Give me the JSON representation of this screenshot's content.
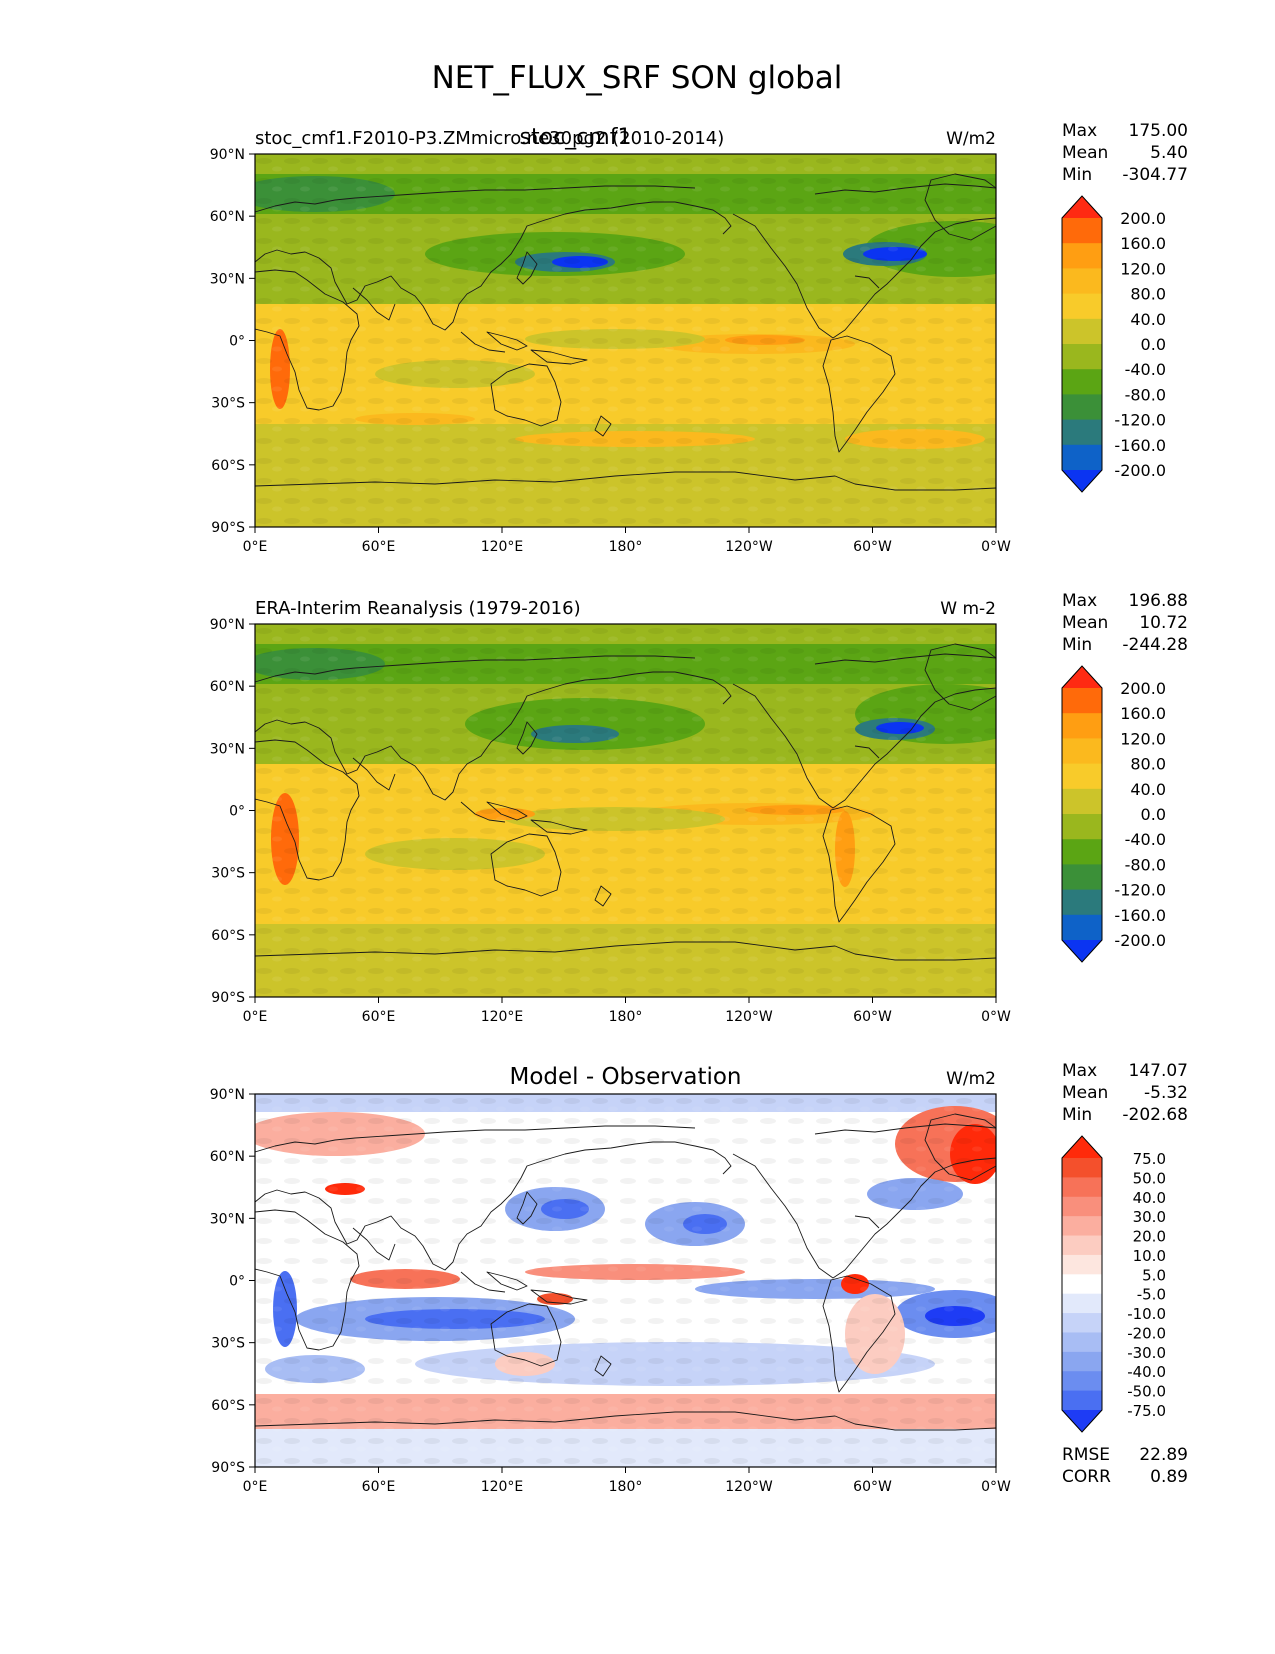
{
  "figure": {
    "title": "NET_FLUX_SRF SON global"
  },
  "chart_data": [
    {
      "type": "heatmap",
      "name": "model",
      "title_left": "stoc_cmf1.F2010-P3.ZMmicro.ne30pg2 (2010-2014)",
      "title_center": "stoc_cmf1",
      "units": "W/m2",
      "xticks": [
        "0°E",
        "60°E",
        "120°E",
        "180°",
        "120°W",
        "60°W",
        "0°W"
      ],
      "yticks": [
        "90°N",
        "60°N",
        "30°N",
        "0°",
        "30°S",
        "60°S",
        "90°S"
      ],
      "xlim": [
        0,
        360
      ],
      "ylim": [
        -90,
        90
      ],
      "stats": {
        "max_label": "Max",
        "max": "175.00",
        "mean_label": "Mean",
        "mean": "5.40",
        "min_label": "Min",
        "min": "-304.77"
      },
      "colorbar": {
        "levels": [
          "200.0",
          "160.0",
          "120.0",
          "80.0",
          "40.0",
          "0.0",
          "-40.0",
          "-80.0",
          "-120.0",
          "-160.0",
          "-200.0"
        ],
        "colors": [
          "#ff2a12",
          "#ff6a0a",
          "#ff9e12",
          "#fbb91e",
          "#f8cb2a",
          "#ccc42a",
          "#9ab71e",
          "#5ba514",
          "#3b9038",
          "#2b7a7c",
          "#0e62c8",
          "#0b34f2"
        ]
      }
    },
    {
      "type": "heatmap",
      "name": "observation",
      "title_left": "ERA-Interim Reanalysis (1979-2016)",
      "units": "W m-2",
      "xticks": [
        "0°E",
        "60°E",
        "120°E",
        "180°",
        "120°W",
        "60°W",
        "0°W"
      ],
      "yticks": [
        "90°N",
        "60°N",
        "30°N",
        "0°",
        "30°S",
        "60°S",
        "90°S"
      ],
      "xlim": [
        0,
        360
      ],
      "ylim": [
        -90,
        90
      ],
      "stats": {
        "max_label": "Max",
        "max": "196.88",
        "mean_label": "Mean",
        "mean": "10.72",
        "min_label": "Min",
        "min": "-244.28"
      },
      "colorbar": {
        "levels": [
          "200.0",
          "160.0",
          "120.0",
          "80.0",
          "40.0",
          "0.0",
          "-40.0",
          "-80.0",
          "-120.0",
          "-160.0",
          "-200.0"
        ],
        "colors": [
          "#ff2a12",
          "#ff6a0a",
          "#ff9e12",
          "#fbb91e",
          "#f8cb2a",
          "#ccc42a",
          "#9ab71e",
          "#5ba514",
          "#3b9038",
          "#2b7a7c",
          "#0e62c8",
          "#0b34f2"
        ]
      }
    },
    {
      "type": "heatmap",
      "name": "difference",
      "title_center": "Model - Observation",
      "units": "W/m2",
      "xticks": [
        "0°E",
        "60°E",
        "120°E",
        "180°",
        "120°W",
        "60°W",
        "0°W"
      ],
      "yticks": [
        "90°N",
        "60°N",
        "30°N",
        "0°",
        "30°S",
        "60°S",
        "90°S"
      ],
      "xlim": [
        0,
        360
      ],
      "ylim": [
        -90,
        90
      ],
      "stats": {
        "max_label": "Max",
        "max": "147.07",
        "mean_label": "Mean",
        "mean": "-5.32",
        "min_label": "Min",
        "min": "-202.68",
        "rmse_label": "RMSE",
        "rmse": "22.89",
        "corr_label": "CORR",
        "corr": "0.89"
      },
      "colorbar": {
        "levels": [
          "75.0",
          "50.0",
          "40.0",
          "30.0",
          "20.0",
          "10.0",
          "5.0",
          "-5.0",
          "-10.0",
          "-20.0",
          "-30.0",
          "-40.0",
          "-50.0",
          "-75.0"
        ],
        "colors": [
          "#ff2a0a",
          "#f4502c",
          "#f77258",
          "#f98f7c",
          "#fbae9f",
          "#fcccc1",
          "#fde6df",
          "#ffffff",
          "#e2e9fb",
          "#c6d3f8",
          "#a8bdf4",
          "#8aa6f0",
          "#6b8df0",
          "#4a6ff2",
          "#1e3cf5"
        ]
      }
    }
  ]
}
